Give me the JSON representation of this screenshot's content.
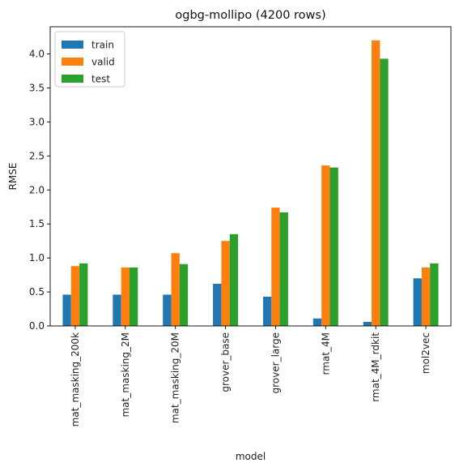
{
  "chart_data": {
    "type": "bar",
    "title": "ogbg-mollipo (4200 rows)",
    "xlabel": "model",
    "ylabel": "RMSE",
    "ylim": [
      0,
      4.4
    ],
    "yticks": [
      "0.0",
      "0.5",
      "1.0",
      "1.5",
      "2.0",
      "2.5",
      "3.0",
      "3.5",
      "4.0"
    ],
    "grid": false,
    "legend_position": "top-left",
    "categories": [
      "mat_masking_200k",
      "mat_masking_2M",
      "mat_masking_20M",
      "grover_base",
      "grover_large",
      "rmat_4M",
      "rmat_4M_rdkit",
      "mol2vec"
    ],
    "series": [
      {
        "name": "train",
        "color": "#1f77b4",
        "values": [
          0.46,
          0.46,
          0.46,
          0.62,
          0.43,
          0.11,
          0.06,
          0.7
        ]
      },
      {
        "name": "valid",
        "color": "#ff7f0e",
        "values": [
          0.88,
          0.86,
          1.07,
          1.25,
          1.74,
          2.36,
          4.2,
          0.86
        ]
      },
      {
        "name": "test",
        "color": "#2ca02c",
        "values": [
          0.92,
          0.86,
          0.91,
          1.35,
          1.67,
          2.33,
          3.93,
          0.92
        ]
      }
    ]
  }
}
